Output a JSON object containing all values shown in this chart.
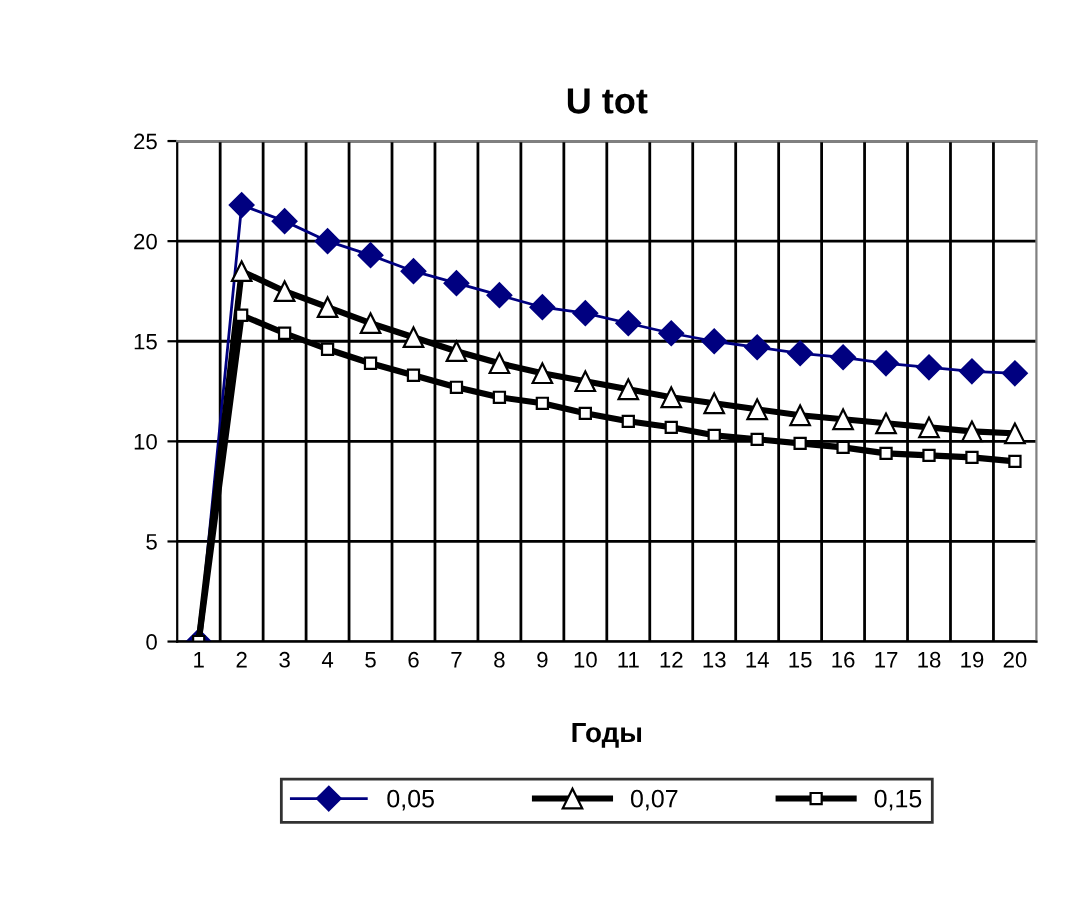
{
  "chart_data": {
    "type": "line",
    "title": "U tot",
    "xlabel": "Годы",
    "categories": [
      "1",
      "2",
      "3",
      "4",
      "5",
      "6",
      "7",
      "8",
      "9",
      "10",
      "11",
      "12",
      "13",
      "14",
      "15",
      "16",
      "17",
      "18",
      "19",
      "20"
    ],
    "series": [
      {
        "name": "0,05",
        "color": "#000080",
        "marker": "diamond",
        "values": [
          0,
          21.8,
          21.0,
          20.0,
          19.3,
          18.5,
          17.9,
          17.3,
          16.7,
          16.4,
          15.9,
          15.4,
          15.0,
          14.7,
          14.4,
          14.2,
          13.9,
          13.7,
          13.5,
          13.4
        ]
      },
      {
        "name": "0,07",
        "color": "#000000",
        "marker": "triangle",
        "values": [
          0,
          18.5,
          17.5,
          16.7,
          15.9,
          15.2,
          14.5,
          13.9,
          13.4,
          13.0,
          12.6,
          12.2,
          11.9,
          11.6,
          11.3,
          11.1,
          10.9,
          10.7,
          10.5,
          10.4
        ]
      },
      {
        "name": "0,15",
        "color": "#000000",
        "marker": "square",
        "values": [
          0,
          16.3,
          15.4,
          14.6,
          13.9,
          13.3,
          12.7,
          12.2,
          11.9,
          11.4,
          11.0,
          10.7,
          10.3,
          10.1,
          9.9,
          9.7,
          9.4,
          9.3,
          9.2,
          9.0
        ]
      }
    ],
    "ylim": [
      0,
      25
    ],
    "yticks": [
      0,
      5,
      10,
      15,
      20,
      25
    ],
    "grid": true,
    "legend": "bottom",
    "line_style": "solid"
  }
}
